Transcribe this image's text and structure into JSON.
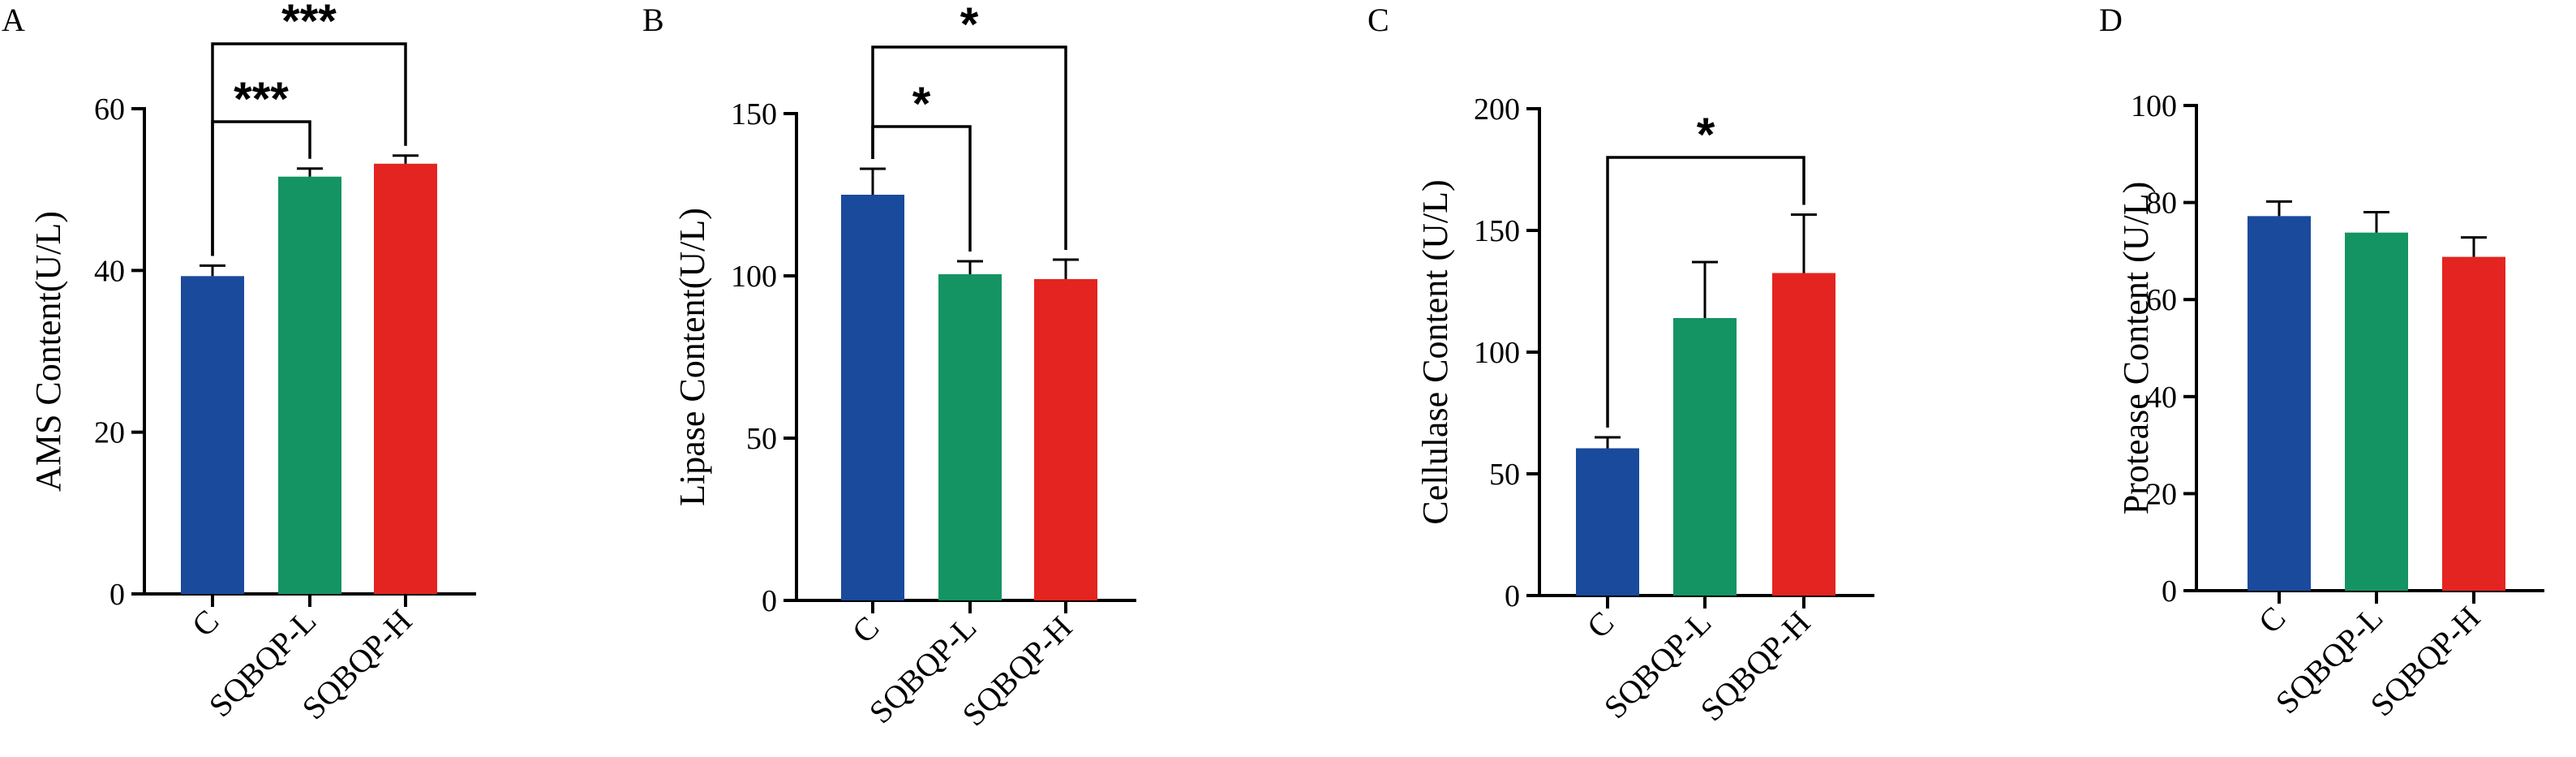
{
  "colors": {
    "C": "#1a4a9c",
    "SQBQP-L": "#149463",
    "SQBQP-H": "#e42420"
  },
  "chart_data": [
    {
      "panel": "A",
      "type": "bar",
      "ylabel": "AMS Content(U/L)",
      "categories": [
        "C",
        "SQBQP-L",
        "SQBQP-H"
      ],
      "values": [
        39.3,
        51.6,
        53.2
      ],
      "errors": [
        1.3,
        1.0,
        1.0
      ],
      "ylim": [
        0,
        60
      ],
      "yticks": [
        0,
        20,
        40,
        60
      ],
      "significance": [
        {
          "from": 0,
          "to": 1,
          "label": "***"
        },
        {
          "from": 0,
          "to": 2,
          "label": "***"
        }
      ]
    },
    {
      "panel": "B",
      "type": "bar",
      "ylabel": "Lipase Content(U/L)",
      "categories": [
        "C",
        "SQBQP-L",
        "SQBQP-H"
      ],
      "values": [
        125,
        100.5,
        99
      ],
      "errors": [
        8,
        4,
        6
      ],
      "ylim": [
        0,
        150
      ],
      "yticks": [
        0,
        50,
        100,
        150
      ],
      "significance": [
        {
          "from": 0,
          "to": 1,
          "label": "*"
        },
        {
          "from": 0,
          "to": 2,
          "label": "*"
        }
      ]
    },
    {
      "panel": "C",
      "type": "bar",
      "ylabel": "Cellulase Content (U/L)",
      "categories": [
        "C",
        "SQBQP-L",
        "SQBQP-H"
      ],
      "values": [
        60.5,
        114,
        132.5
      ],
      "errors": [
        4.5,
        23,
        24
      ],
      "ylim": [
        0,
        200
      ],
      "yticks": [
        0,
        50,
        100,
        150,
        200
      ],
      "significance": [
        {
          "from": 0,
          "to": 2,
          "label": "*"
        }
      ]
    },
    {
      "panel": "D",
      "type": "bar",
      "ylabel": "Protease Content (U/L)",
      "categories": [
        "C",
        "SQBQP-L",
        "SQBQP-H"
      ],
      "values": [
        77.2,
        73.8,
        68.8
      ],
      "errors": [
        3,
        4.2,
        4
      ],
      "ylim": [
        0,
        100
      ],
      "yticks": [
        0,
        20,
        40,
        60,
        80,
        100
      ],
      "significance": []
    }
  ]
}
